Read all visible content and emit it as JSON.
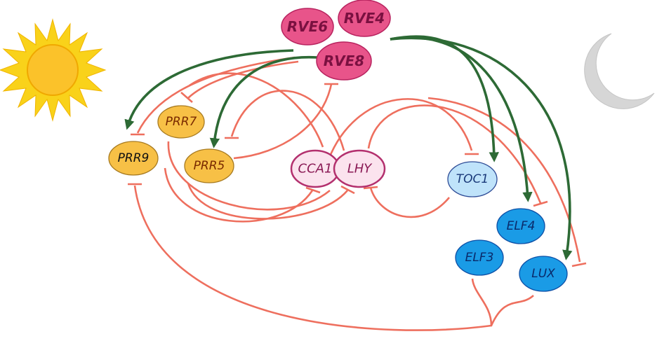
{
  "nodes": {
    "rve6": "RVE6",
    "rve4": "RVE4",
    "rve8": "RVE8",
    "prr7": "PRR7",
    "prr9": "PRR9",
    "prr5": "PRR5",
    "cca1": "CCA1",
    "lhy": "LHY",
    "toc1": "TOC1",
    "elf4": "ELF4",
    "elf3": "ELF3",
    "lux": "LUX"
  },
  "icons": {
    "sun": "sun-icon",
    "moon": "moon-icon"
  },
  "colors": {
    "activation": "#2d6a35",
    "repression": "#ee6f5e",
    "rve_fill": "#e8548a",
    "prr_fill": "#f7c046",
    "cca1_lhy_fill": "#fbe3ee",
    "toc1_fill": "#bfe3fa",
    "ec_fill": "#1a9be6",
    "sun": "#f9d21a",
    "moon": "#d3d3d3"
  }
}
